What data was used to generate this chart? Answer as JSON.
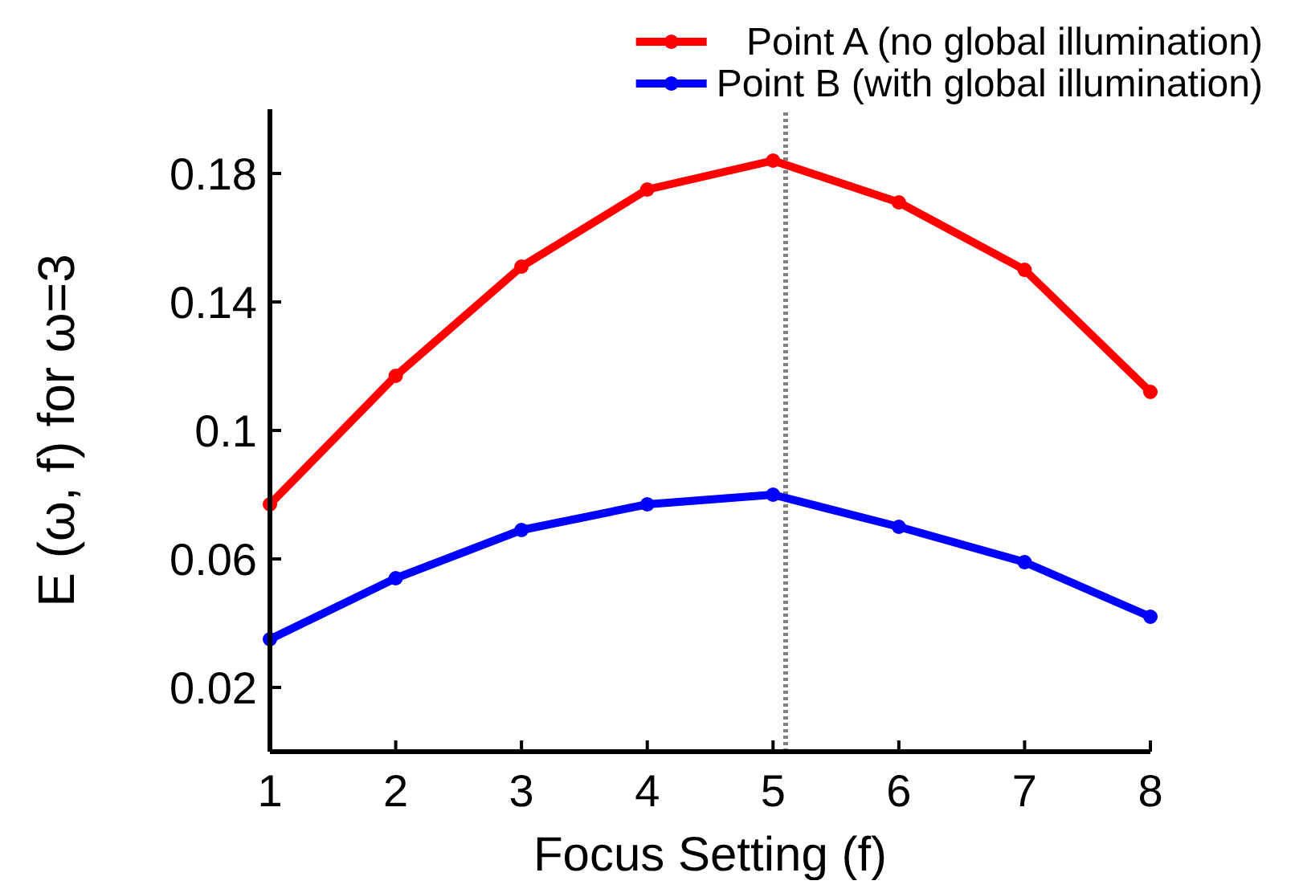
{
  "chart_data": {
    "type": "line",
    "xlabel": "Focus Setting (f)",
    "ylabel": "E (ω, f) for ω=3",
    "x": [
      1,
      2,
      3,
      4,
      5,
      6,
      7,
      8
    ],
    "series": [
      {
        "name": "Point A (no global illumination)",
        "color": "#ff0000",
        "values": [
          0.077,
          0.117,
          0.151,
          0.175,
          0.184,
          0.171,
          0.15,
          0.112
        ]
      },
      {
        "name": "Point B (with global illumination)",
        "color": "#0000ff",
        "values": [
          0.035,
          0.054,
          0.069,
          0.077,
          0.08,
          0.07,
          0.059,
          0.042
        ]
      }
    ],
    "xlim": [
      1,
      8
    ],
    "xticks": [
      1,
      2,
      3,
      4,
      5,
      6,
      7,
      8
    ],
    "ylim": [
      0,
      0.2
    ],
    "yticks": [
      0.02,
      0.06,
      0.1,
      0.14,
      0.18
    ],
    "ref_lines": [
      {
        "axis": "x",
        "value": 5.1,
        "color": "#808080",
        "line_style": "dotted"
      }
    ],
    "grid": false,
    "legend": "top right",
    "marker": "circle",
    "line_style": "solid"
  }
}
